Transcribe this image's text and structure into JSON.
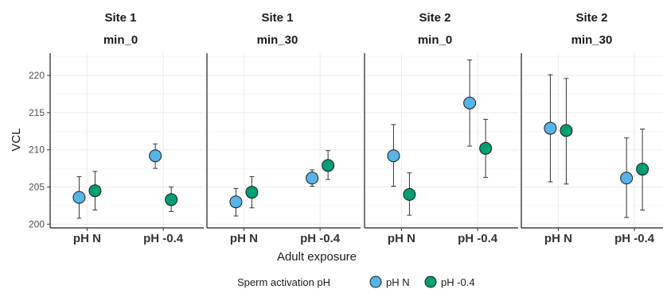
{
  "chart_data": {
    "type": "scatter",
    "xlabel": "Adult exposure",
    "ylabel": "VCL",
    "ylim": [
      199.5,
      223
    ],
    "yticks": [
      200,
      205,
      210,
      215,
      220
    ],
    "categories": [
      "pH N",
      "pH -0.4"
    ],
    "grid": true,
    "legend": {
      "title": "Sperm activation pH",
      "position": "bottom",
      "entries": [
        "pH N",
        "pH -0.4"
      ]
    },
    "series_colors": {
      "pH N": "#56B4E9",
      "pH -0.4": "#009E73"
    },
    "panels": [
      {
        "strip_top": "Site 1",
        "strip_bottom": "min_0",
        "points": [
          {
            "x": "pH N",
            "series": "pH N",
            "y": 203.6,
            "ymin": 200.8,
            "ymax": 206.4
          },
          {
            "x": "pH N",
            "series": "pH -0.4",
            "y": 204.5,
            "ymin": 201.9,
            "ymax": 207.1
          },
          {
            "x": "pH -0.4",
            "series": "pH N",
            "y": 209.2,
            "ymin": 207.5,
            "ymax": 210.8
          },
          {
            "x": "pH -0.4",
            "series": "pH -0.4",
            "y": 203.3,
            "ymin": 201.7,
            "ymax": 205.0
          }
        ]
      },
      {
        "strip_top": "Site 1",
        "strip_bottom": "min_30",
        "points": [
          {
            "x": "pH N",
            "series": "pH N",
            "y": 203.0,
            "ymin": 201.1,
            "ymax": 204.8
          },
          {
            "x": "pH N",
            "series": "pH -0.4",
            "y": 204.3,
            "ymin": 202.2,
            "ymax": 206.4
          },
          {
            "x": "pH -0.4",
            "series": "pH N",
            "y": 206.2,
            "ymin": 205.1,
            "ymax": 207.3
          },
          {
            "x": "pH -0.4",
            "series": "pH -0.4",
            "y": 207.9,
            "ymin": 206.0,
            "ymax": 209.9
          }
        ]
      },
      {
        "strip_top": "Site 2",
        "strip_bottom": "min_0",
        "points": [
          {
            "x": "pH N",
            "series": "pH N",
            "y": 209.2,
            "ymin": 205.1,
            "ymax": 213.4
          },
          {
            "x": "pH N",
            "series": "pH -0.4",
            "y": 204.0,
            "ymin": 201.2,
            "ymax": 206.9
          },
          {
            "x": "pH -0.4",
            "series": "pH N",
            "y": 216.3,
            "ymin": 210.5,
            "ymax": 222.1
          },
          {
            "x": "pH -0.4",
            "series": "pH -0.4",
            "y": 210.2,
            "ymin": 206.3,
            "ymax": 214.1
          }
        ]
      },
      {
        "strip_top": "Site 2",
        "strip_bottom": "min_30",
        "points": [
          {
            "x": "pH N",
            "series": "pH N",
            "y": 212.9,
            "ymin": 205.7,
            "ymax": 220.1
          },
          {
            "x": "pH N",
            "series": "pH -0.4",
            "y": 212.6,
            "ymin": 205.4,
            "ymax": 219.6
          },
          {
            "x": "pH -0.4",
            "series": "pH N",
            "y": 206.2,
            "ymin": 200.9,
            "ymax": 211.6
          },
          {
            "x": "pH -0.4",
            "series": "pH -0.4",
            "y": 207.4,
            "ymin": 201.9,
            "ymax": 212.8
          }
        ]
      }
    ]
  }
}
